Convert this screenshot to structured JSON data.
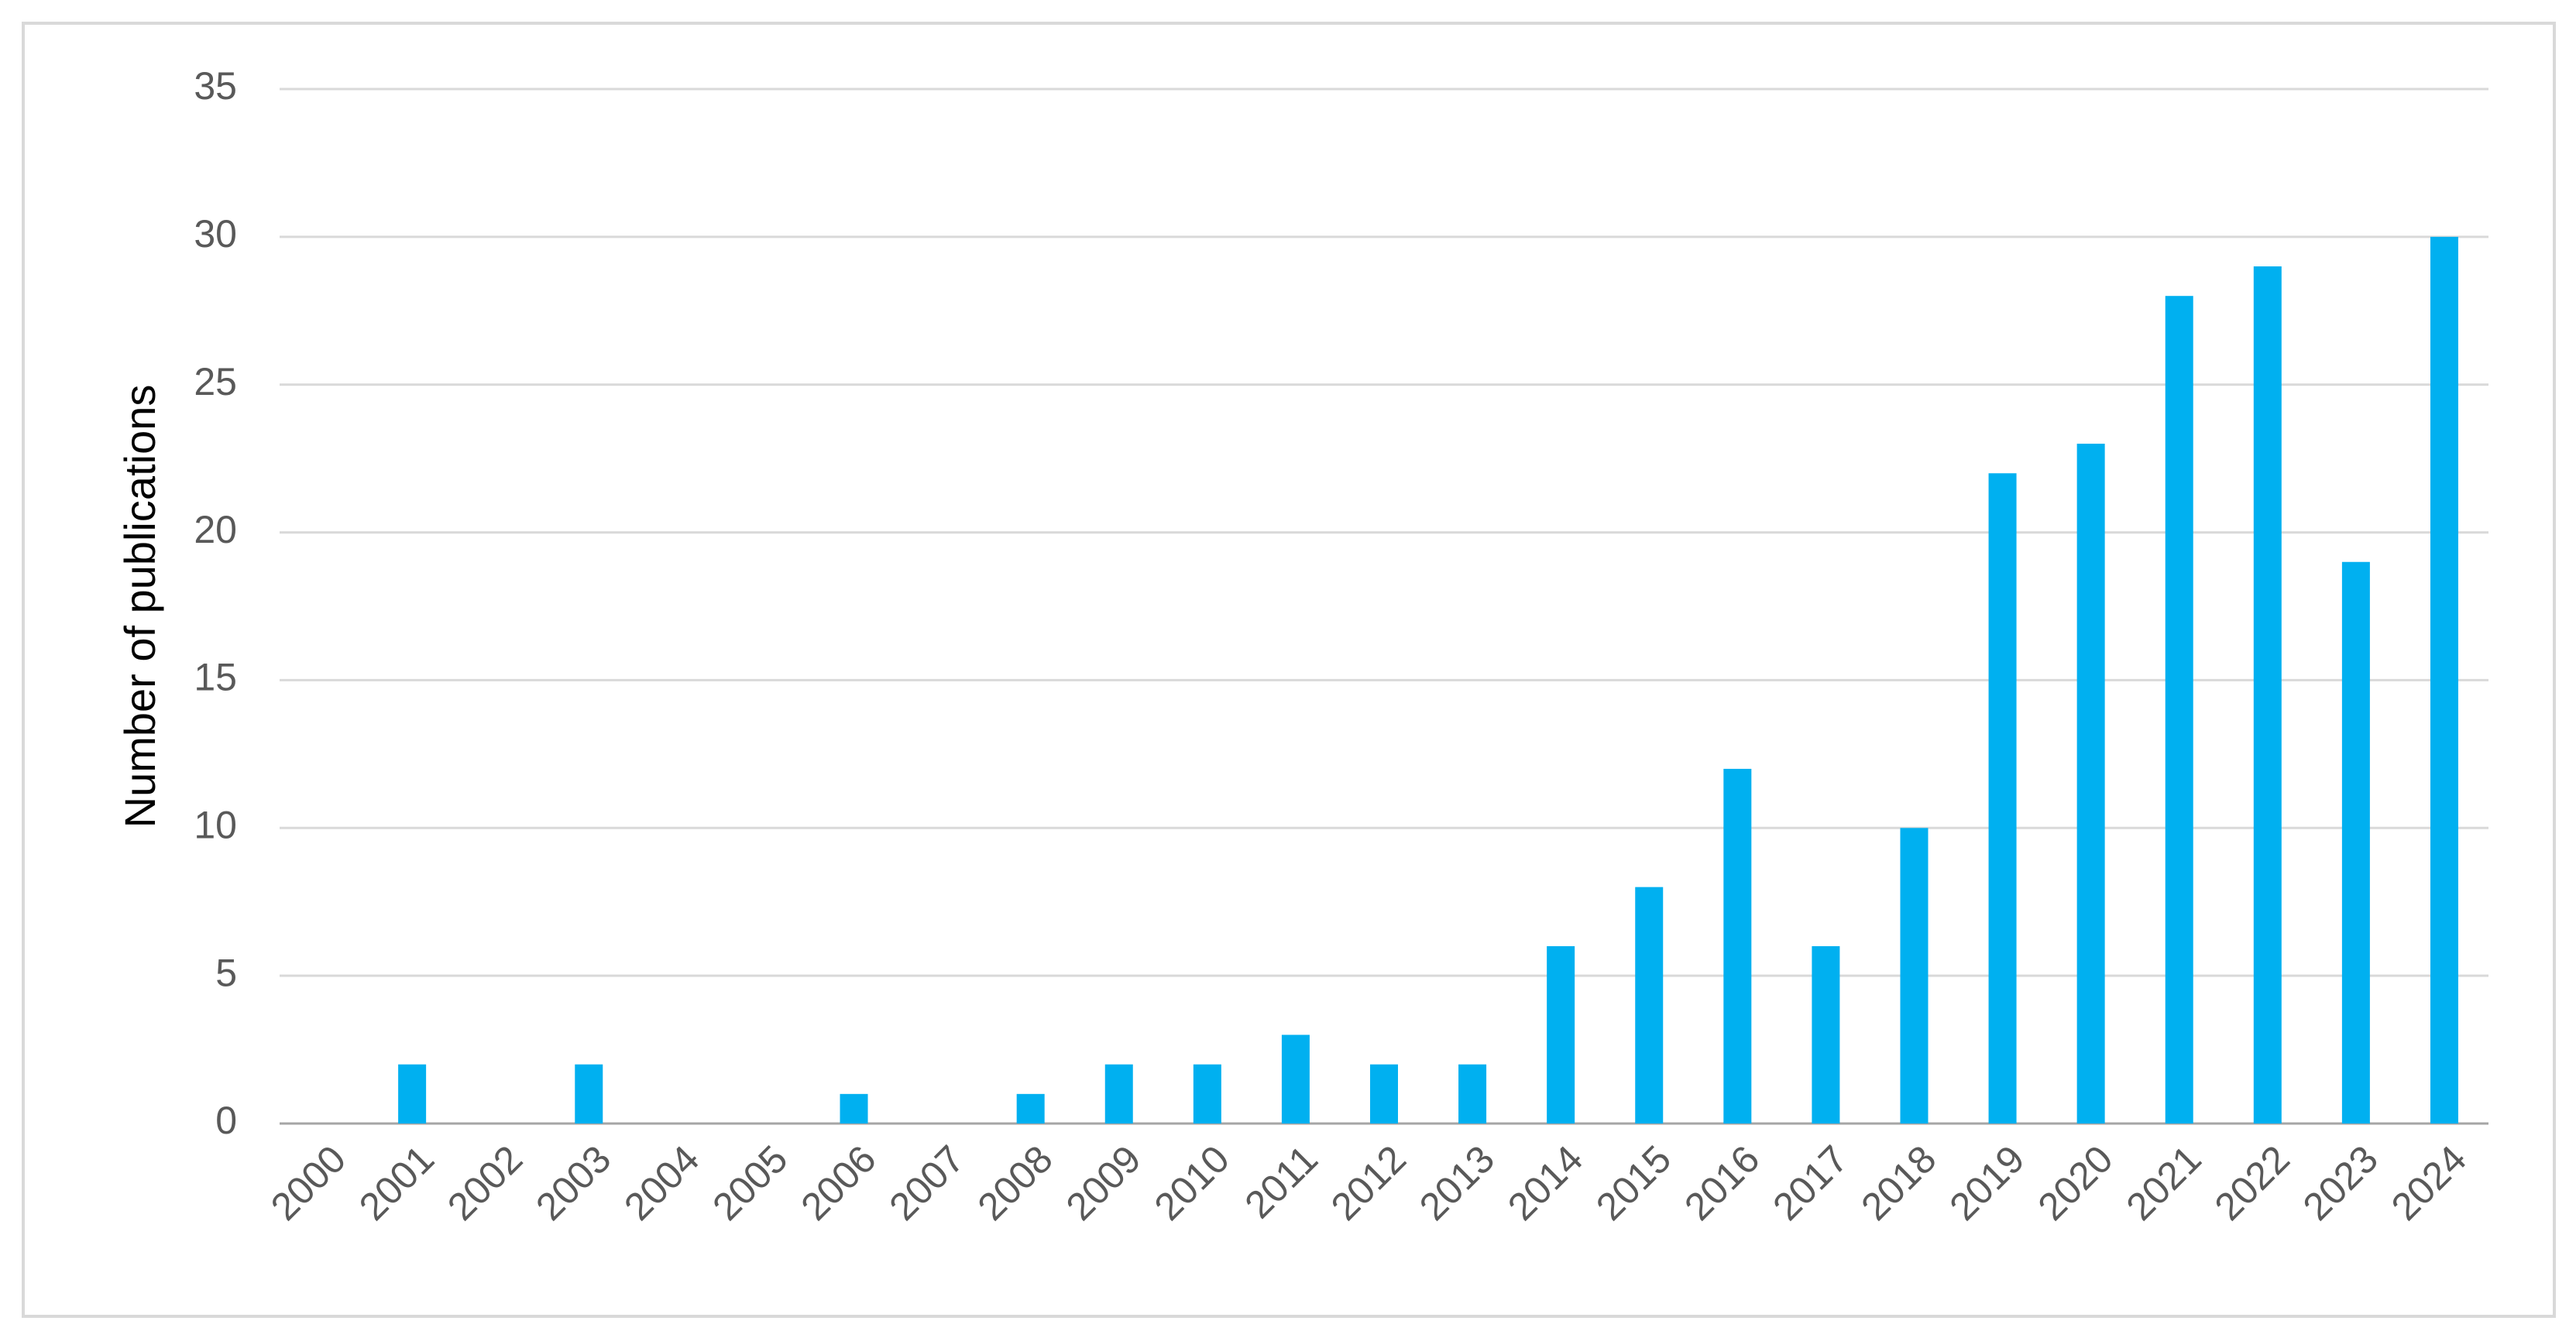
{
  "chart_data": {
    "type": "bar",
    "y_label": "Number of publications",
    "categories": [
      "2000",
      "2001",
      "2002",
      "2003",
      "2004",
      "2005",
      "2006",
      "2007",
      "2008",
      "2009",
      "2010",
      "2011",
      "2012",
      "2013",
      "2014",
      "2015",
      "2016",
      "2017",
      "2018",
      "2019",
      "2020",
      "2021",
      "2022",
      "2023",
      "2024"
    ],
    "values": [
      0,
      2,
      0,
      2,
      0,
      0,
      1,
      0,
      1,
      2,
      2,
      3,
      2,
      2,
      6,
      8,
      12,
      6,
      10,
      22,
      23,
      28,
      29,
      19,
      30
    ],
    "color": "#00b0f0",
    "ylim": [
      0,
      35
    ],
    "yticks": [
      0,
      5,
      10,
      15,
      20,
      25,
      30,
      35
    ],
    "grid": true
  }
}
